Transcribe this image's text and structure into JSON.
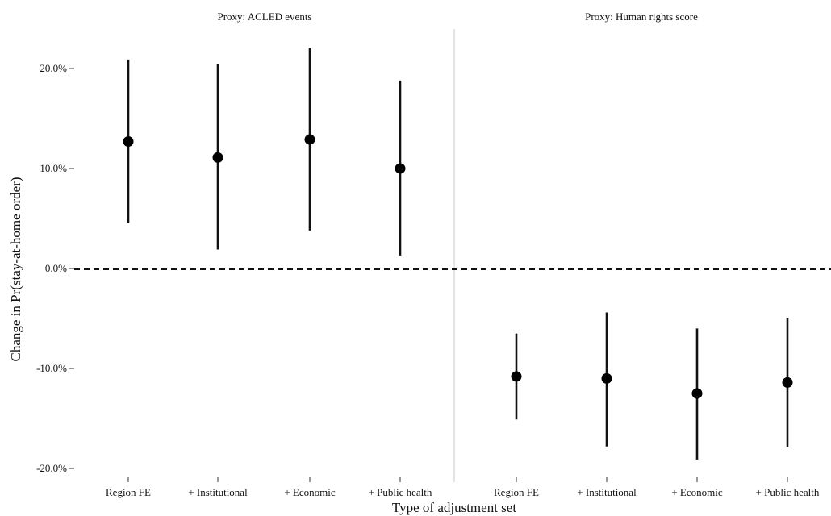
{
  "chart_data": {
    "type": "scatter",
    "subtype": "point-range",
    "xlabel": "Type of adjustment set",
    "ylabel": "Change in Pr(stay-at-home order)",
    "ylim": [
      -0.2,
      0.2
    ],
    "yticks": [
      0.2,
      0.1,
      0.0,
      -0.1,
      -0.2
    ],
    "ytick_labels": [
      "20.0%",
      "10.0%",
      "0.0%",
      "-10.0%",
      "-20.0%"
    ],
    "reference_line": {
      "y": 0,
      "style": "dashed"
    },
    "grid": false,
    "panels": [
      {
        "title": "Proxy: ACLED events",
        "categories": [
          "Region FE",
          "+ Institutional",
          "+ Economic",
          "+ Public health"
        ],
        "estimate": [
          0.127,
          0.111,
          0.129,
          0.1
        ],
        "lower": [
          0.046,
          0.019,
          0.038,
          0.013
        ],
        "upper": [
          0.209,
          0.204,
          0.221,
          0.188
        ]
      },
      {
        "title": "Proxy: Human rights score",
        "categories": [
          "Region FE",
          "+ Institutional",
          "+ Economic",
          "+ Public health"
        ],
        "estimate": [
          -0.108,
          -0.11,
          -0.125,
          -0.114
        ],
        "lower": [
          -0.151,
          -0.178,
          -0.191,
          -0.179
        ],
        "upper": [
          -0.065,
          -0.044,
          -0.06,
          -0.05
        ]
      }
    ]
  }
}
